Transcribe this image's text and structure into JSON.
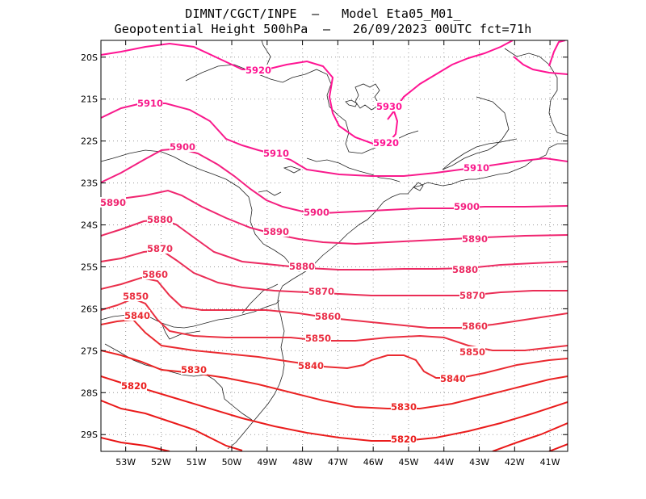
{
  "title": {
    "line1": "DIMNT/CGCT/INPE  –   Model Eta05_M01_",
    "line2": "Geopotential Height 500hPa  –   26/09/2023 00UTC fct=71h"
  },
  "map": {
    "lat_range": [
      -29.4,
      -19.6
    ],
    "lon_range": [
      -53.7,
      -40.5
    ],
    "lat_ticks": [
      "20S",
      "21S",
      "22S",
      "23S",
      "24S",
      "25S",
      "26S",
      "27S",
      "28S",
      "29S"
    ],
    "lon_ticks": [
      "53W",
      "52W",
      "51W",
      "50W",
      "49W",
      "48W",
      "47W",
      "46W",
      "45W",
      "44W",
      "43W",
      "42W",
      "41W"
    ],
    "grid": "dotted",
    "contour_interval_m": 10
  },
  "contours": [
    {
      "value": "5930",
      "color": "#ff1493"
    },
    {
      "value": "5920",
      "color": "#ff1493"
    },
    {
      "value": "5910",
      "color": "#f81a8c"
    },
    {
      "value": "5900",
      "color": "#f41f80"
    },
    {
      "value": "5890",
      "color": "#f02570"
    },
    {
      "value": "5880",
      "color": "#ec2a62"
    },
    {
      "value": "5870",
      "color": "#ea2d56"
    },
    {
      "value": "5860",
      "color": "#ea2f4a"
    },
    {
      "value": "5850",
      "color": "#ea2f40"
    },
    {
      "value": "5840",
      "color": "#ea2a30"
    },
    {
      "value": "5830",
      "color": "#ea2424"
    },
    {
      "value": "5820",
      "color": "#ea1c1c"
    }
  ]
}
